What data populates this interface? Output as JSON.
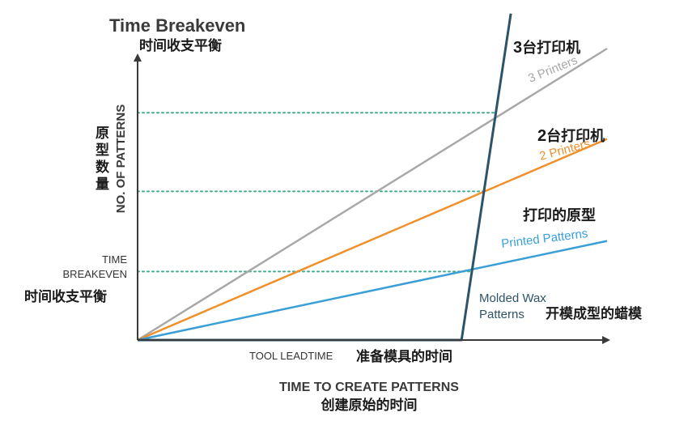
{
  "chart_data": {
    "type": "line",
    "title": "Time Breakeven",
    "title_zh": "时间收支平衡",
    "ylabel": "NO. OF PATTERNS",
    "ylabel_zh": "原型数量",
    "xlabel": "TIME TO CREATE PATTERNS",
    "xlabel_zh": "创建原始的时间",
    "y_marker_label": "TIME BREAKEVEN",
    "y_marker_label_zh": "时间收支平衡",
    "x_marker_label": "TOOL LEADTIME",
    "x_marker_label_zh": "准备模具的时间",
    "grid": false,
    "legend": "inline labels",
    "colors": {
      "axis": "#3a3a3a",
      "printer3": "#a8a8a8",
      "printer2": "#f0902a",
      "printer1": "#3a9fd6",
      "wax": "#2d5368",
      "guide": "#3fae8e",
      "text": "#333333"
    },
    "series": [
      {
        "key": "printer3",
        "name": "3 Printers",
        "name_zh_num": "3",
        "name_zh_rest": "台打印机",
        "x": [
          0,
          100
        ],
        "y": [
          0,
          100
        ]
      },
      {
        "key": "printer2",
        "name": "2 Printers",
        "name_zh_num": "2",
        "name_zh_rest": "台打印机",
        "x": [
          0,
          100
        ],
        "y": [
          0,
          69
        ]
      },
      {
        "key": "printer1",
        "name": "Printed Patterns",
        "name_zh": "打印的原型",
        "x": [
          0,
          100
        ],
        "y": [
          0,
          34
        ]
      },
      {
        "key": "wax",
        "name": "Molded Wax Patterns",
        "name_line1": "Molded Wax",
        "name_line2": "Patterns",
        "name_zh": "开模成型的蜡模",
        "x": [
          0,
          69,
          79.5
        ],
        "y": [
          0,
          0,
          112
        ]
      }
    ],
    "breakeven_y": [
      23.5,
      51,
      78
    ]
  }
}
